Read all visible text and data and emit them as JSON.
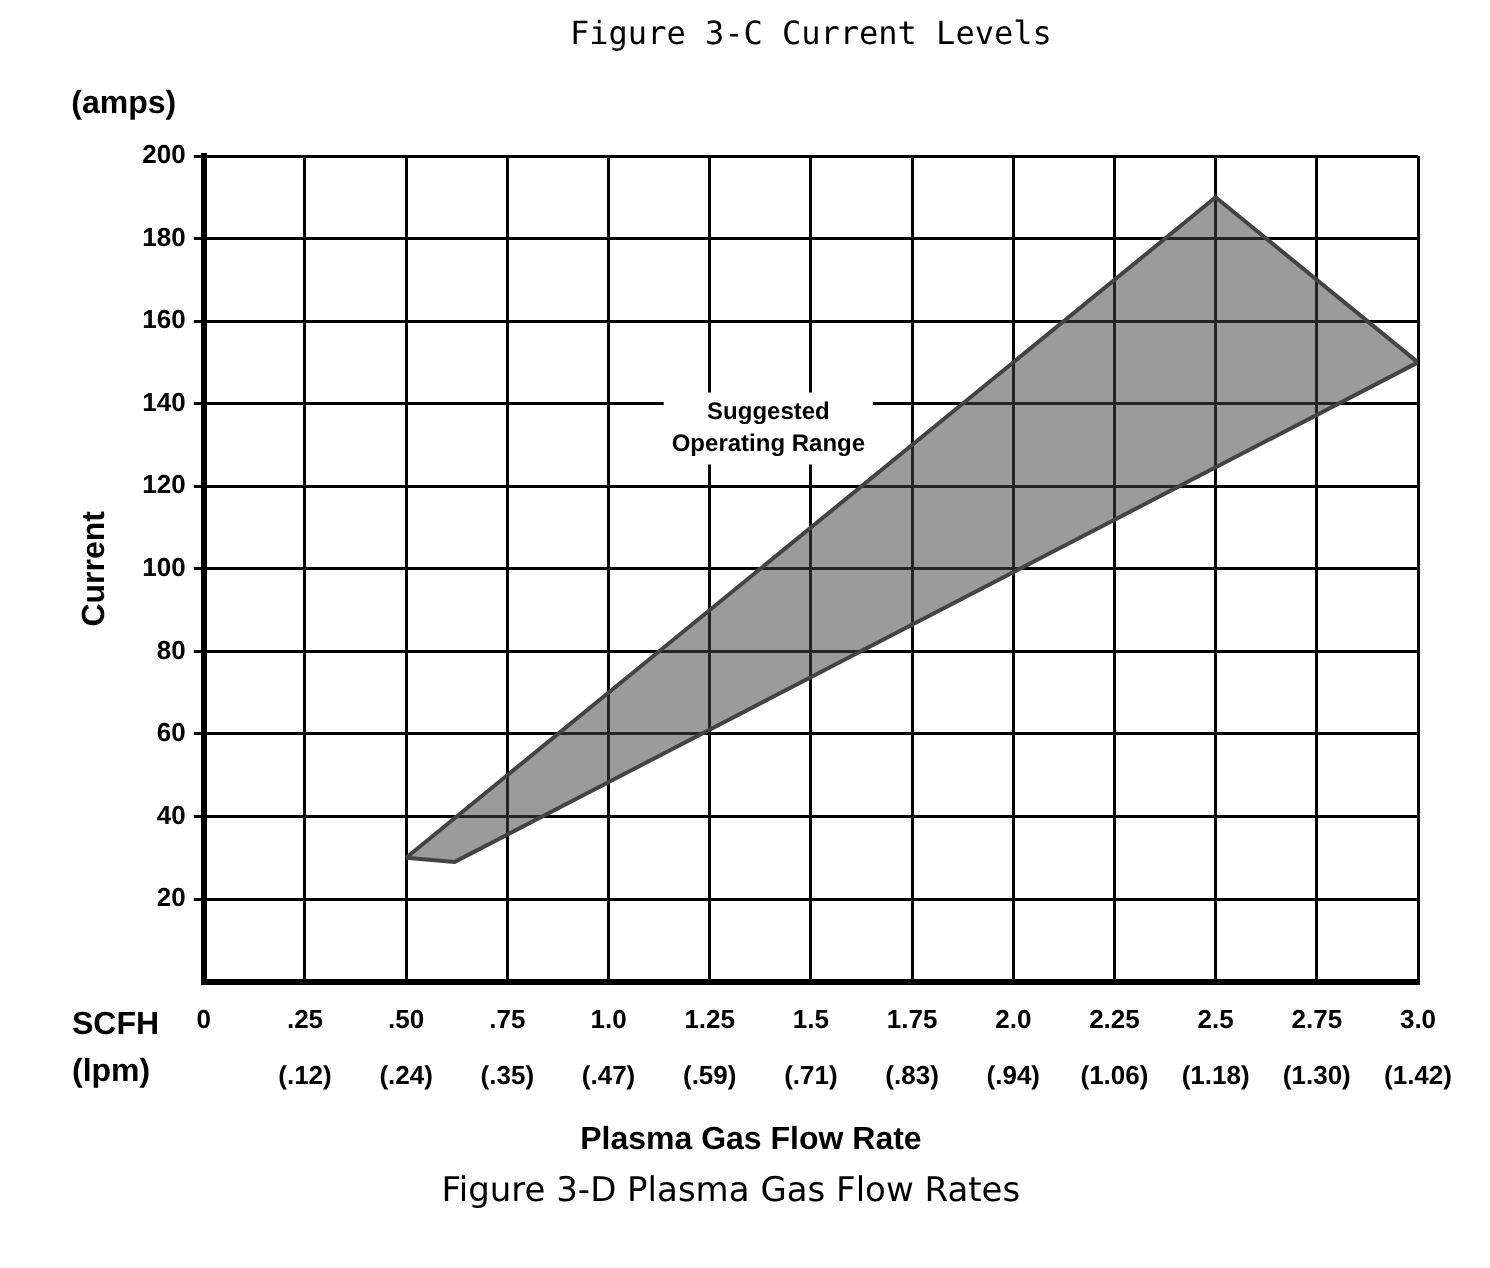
{
  "chart_data": {
    "type": "line",
    "title": "Figure 3-C Current Levels",
    "xlabel": "Plasma Gas Flow Rate",
    "ylabel": "Current",
    "x": [
      0.5,
      0.62,
      2.5,
      3.0
    ],
    "series": [
      {
        "color": "#444444",
        "values": [
          null,
          null,
          null,
          null
        ],
        "lower": [
          30,
          29,
          125,
          150
        ],
        "upper": [
          30,
          40,
          190,
          150
        ]
      },
      {
        "color": "#444444",
        "x": [
          0.5,
          2.5,
          3.0
        ],
        "values": [
          30,
          190,
          150
        ]
      },
      {
        "color": "#444444",
        "x": [
          0.5,
          0.62,
          3.0
        ],
        "values": [
          30,
          29,
          150
        ]
      }
    ],
    "xlim": [
      0,
      3.0
    ],
    "xticks": [
      0,
      {
        "value": 0.25,
        "label": ".25"
      },
      {
        "value": 0.5,
        "label": ".50"
      },
      {
        "value": 0.75,
        "label": ".75"
      },
      {
        "value": 1.0,
        "label": "1.0"
      },
      1.25,
      1.5,
      1.75,
      {
        "value": 2.0,
        "label": "2.0"
      },
      2.25,
      2.5,
      2.75,
      {
        "value": 3.0,
        "label": "3.0"
      }
    ],
    "x2lim": [
      0,
      1.416
    ],
    "x2ticks": [
      {
        "value": 0.118,
        "label": "(.12)"
      },
      {
        "value": 0.236,
        "label": "(.24)"
      },
      {
        "value": 0.354,
        "label": "(.35)"
      },
      {
        "value": 0.472,
        "label": "(.47)"
      },
      {
        "value": 0.59,
        "label": "(.59)"
      },
      {
        "value": 0.708,
        "label": "(.71)"
      },
      {
        "value": 0.826,
        "label": "(.83)"
      },
      {
        "value": 0.944,
        "label": "(.94)"
      },
      {
        "value": 1.062,
        "label": "(1.06)"
      },
      {
        "value": 1.18,
        "label": "(1.18)"
      },
      {
        "value": 1.298,
        "label": "(1.30)"
      },
      {
        "value": 1.416,
        "label": "(1.42)"
      }
    ],
    "ylim": [
      0,
      200
    ],
    "yticks": [
      20,
      40,
      60,
      80,
      100,
      120,
      140,
      160,
      180,
      200
    ],
    "grid": true,
    "legend": false,
    "annotations": [
      "(amps)",
      "SCFH",
      "(lpm)",
      "Suggested Operating Range",
      "Figure 3-D Plasma Gas Flow Rates"
    ]
  }
}
